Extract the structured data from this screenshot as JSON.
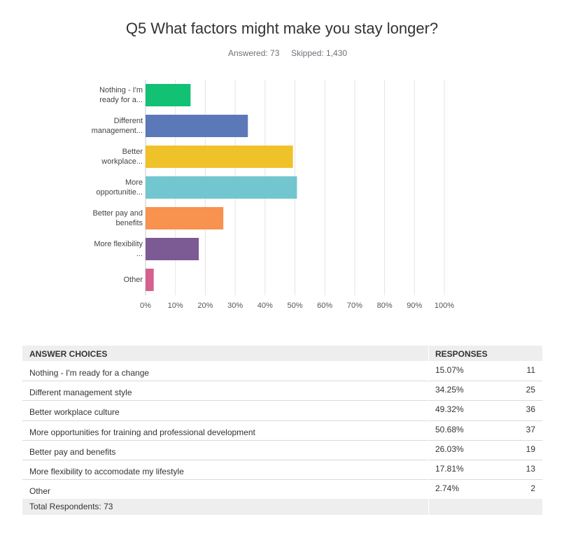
{
  "chart_data": {
    "type": "bar",
    "orientation": "horizontal",
    "title": "Q5 What factors might make you stay longer?",
    "answered": "Answered: 73",
    "skipped": "Skipped: 1,430",
    "categories": [
      "Nothing - I'm ready for a...",
      "Different management...",
      "Better workplace...",
      "More opportunitie...",
      "Better pay and benefits",
      "More flexibility ...",
      "Other"
    ],
    "values": [
      15.07,
      34.25,
      49.32,
      50.68,
      26.03,
      17.81,
      2.74
    ],
    "colors": [
      "#12c173",
      "#5b78b8",
      "#f0c229",
      "#72c6cf",
      "#f7924f",
      "#7c5a93",
      "#d5618f"
    ],
    "xlim": [
      0,
      100
    ],
    "xticks": [
      {
        "value": 0,
        "label": "0%"
      },
      {
        "value": 10,
        "label": "10%"
      },
      {
        "value": 20,
        "label": "20%"
      },
      {
        "value": 30,
        "label": "30%"
      },
      {
        "value": 40,
        "label": "40%"
      },
      {
        "value": 50,
        "label": "50%"
      },
      {
        "value": 60,
        "label": "60%"
      },
      {
        "value": 70,
        "label": "70%"
      },
      {
        "value": 80,
        "label": "80%"
      },
      {
        "value": 90,
        "label": "90%"
      },
      {
        "value": 100,
        "label": "100%"
      }
    ],
    "grid": true
  },
  "table": {
    "header": [
      "ANSWER CHOICES",
      "RESPONSES"
    ],
    "rows": [
      [
        "Nothing - I'm ready for a change",
        "15.07%",
        11
      ],
      [
        "Different management style",
        "34.25%",
        25
      ],
      [
        "Better workplace culture",
        "49.32%",
        36
      ],
      [
        "More opportunities for training and professional development",
        "50.68%",
        37
      ],
      [
        "Better pay and benefits",
        "26.03%",
        19
      ],
      [
        "More flexibility to accomodate my lifestyle",
        "17.81%",
        13
      ],
      [
        "Other",
        "2.74%",
        2
      ]
    ],
    "footer": "Total Respondents: 73"
  }
}
